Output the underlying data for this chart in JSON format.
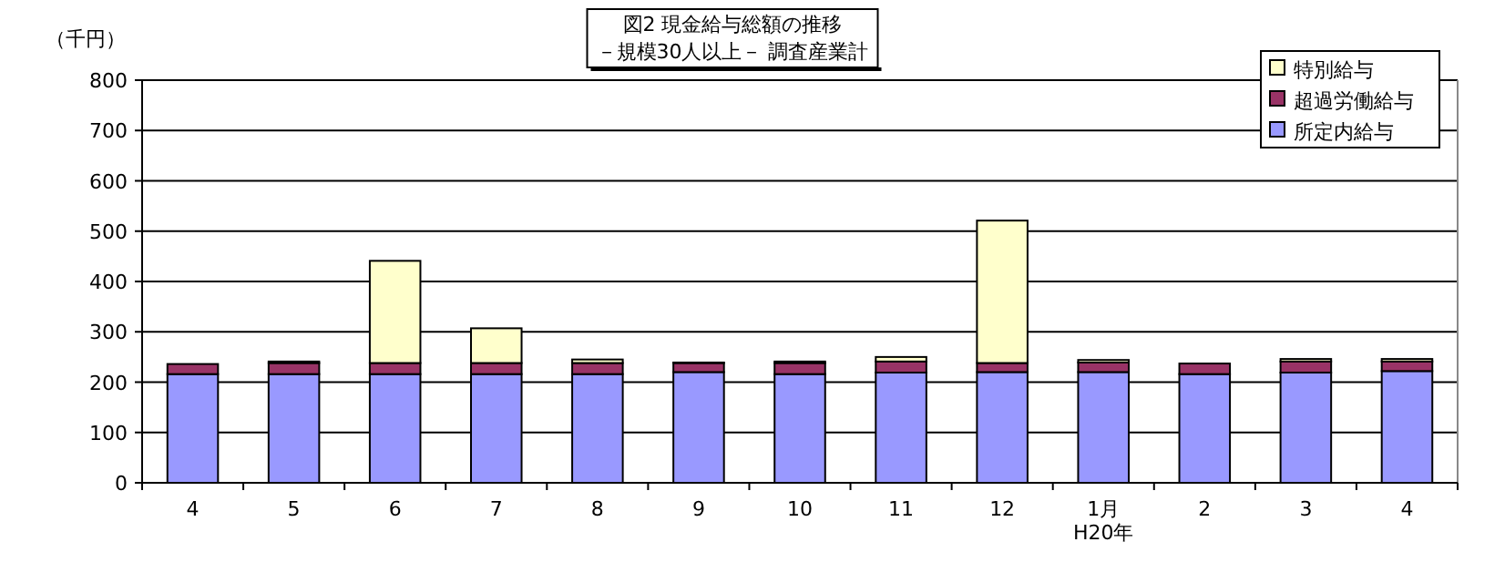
{
  "chart_data": {
    "type": "bar",
    "title": "図2  現金給与総額の推移",
    "subtitle": "－規模30人以上－  調査産業計",
    "ylabel": "（千円）",
    "categories": [
      "4",
      "5",
      "6",
      "7",
      "8",
      "9",
      "10",
      "11",
      "12",
      "1月\nH20年",
      "2",
      "3",
      "4"
    ],
    "stacked": true,
    "series": [
      {
        "name": "所定内給与",
        "color": "#9999ff",
        "values": [
          216,
          216,
          216,
          216,
          216,
          220,
          216,
          219,
          220,
          220,
          216,
          219,
          222
        ]
      },
      {
        "name": "超過労働給与",
        "color": "#993366",
        "values": [
          20,
          22,
          22,
          22,
          22,
          18,
          22,
          22,
          18,
          19,
          21,
          22,
          19
        ]
      },
      {
        "name": "特別給与",
        "color": "#ffffcc",
        "values": [
          null,
          3,
          203,
          69,
          7,
          1,
          3,
          9,
          283,
          5,
          null,
          5,
          5
        ]
      }
    ],
    "ylim": [
      0,
      800
    ],
    "yticks": [
      0,
      100,
      200,
      300,
      400,
      500,
      600,
      700,
      800
    ],
    "grid": "y",
    "legend": "top right"
  }
}
